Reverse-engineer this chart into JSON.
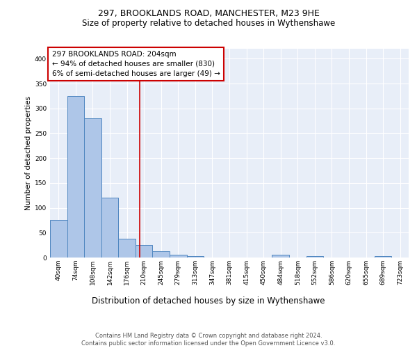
{
  "title1": "297, BROOKLANDS ROAD, MANCHESTER, M23 9HE",
  "title2": "Size of property relative to detached houses in Wythenshawe",
  "xlabel": "Distribution of detached houses by size in Wythenshawe",
  "ylabel": "Number of detached properties",
  "footer1": "Contains HM Land Registry data © Crown copyright and database right 2024.",
  "footer2": "Contains public sector information licensed under the Open Government Licence v3.0.",
  "annotation_line1": "297 BROOKLANDS ROAD: 204sqm",
  "annotation_line2": "← 94% of detached houses are smaller (830)",
  "annotation_line3": "6% of semi-detached houses are larger (49) →",
  "bar_labels": [
    "40sqm",
    "74sqm",
    "108sqm",
    "142sqm",
    "176sqm",
    "210sqm",
    "245sqm",
    "279sqm",
    "313sqm",
    "347sqm",
    "381sqm",
    "415sqm",
    "450sqm",
    "484sqm",
    "518sqm",
    "552sqm",
    "586sqm",
    "620sqm",
    "655sqm",
    "689sqm",
    "723sqm"
  ],
  "bar_values": [
    75,
    325,
    280,
    120,
    38,
    25,
    13,
    5,
    3,
    0,
    0,
    0,
    0,
    5,
    0,
    3,
    0,
    0,
    0,
    3,
    0
  ],
  "bar_color": "#aec6e8",
  "bar_edge_color": "#4f86c0",
  "vline_x": 4.75,
  "vline_color": "#cc0000",
  "ylim": [
    0,
    420
  ],
  "yticks": [
    0,
    50,
    100,
    150,
    200,
    250,
    300,
    350,
    400
  ],
  "background_color": "#e8eef8",
  "box_color": "#cc0000",
  "annotation_fontsize": 7.5,
  "title1_fontsize": 9,
  "title2_fontsize": 8.5,
  "ylabel_fontsize": 7.5,
  "xlabel_fontsize": 8.5,
  "tick_fontsize": 6.5,
  "footer_fontsize": 6.0
}
